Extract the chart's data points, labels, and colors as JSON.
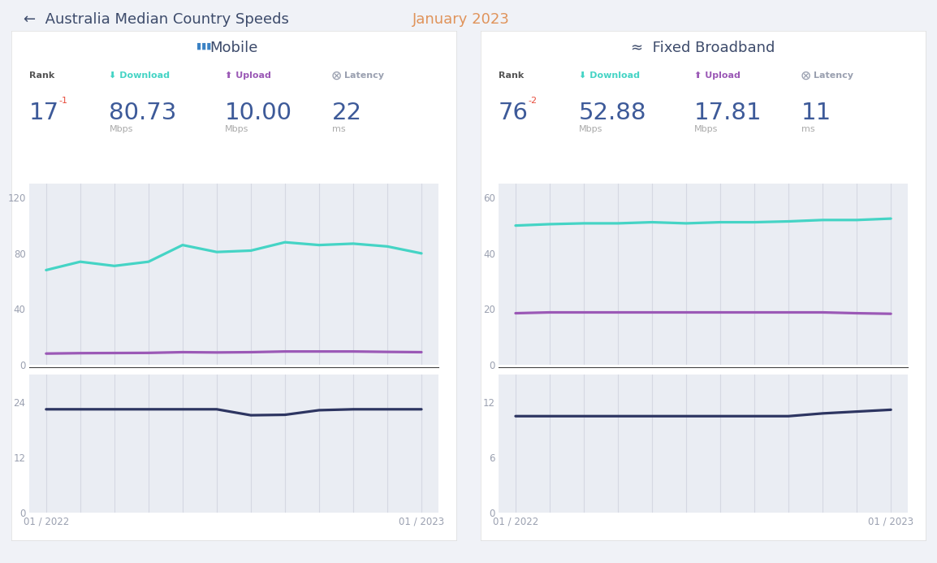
{
  "title_black": "←  Australia Median Country Speeds ",
  "title_orange": "January 2023",
  "page_bg": "#f0f2f7",
  "panel_bg": "#ffffff",
  "chart_bg": "#eaedf3",
  "mobile": {
    "title": "Mobile",
    "rank": "17",
    "rank_change": "-1",
    "download": "80.73",
    "upload": "10.00",
    "latency": "22",
    "download_data": [
      68,
      74,
      71,
      74,
      86,
      81,
      82,
      88,
      86,
      87,
      85,
      80
    ],
    "upload_data": [
      8.0,
      8.3,
      8.4,
      8.5,
      9.0,
      8.8,
      9.0,
      9.5,
      9.5,
      9.5,
      9.2,
      9.0
    ],
    "latency_data": [
      22.5,
      22.5,
      22.5,
      22.5,
      22.5,
      22.5,
      21.2,
      21.3,
      22.3,
      22.5,
      22.5,
      22.5
    ],
    "speed_ylim": [
      0,
      130
    ],
    "speed_yticks": [
      0,
      40,
      80,
      120
    ],
    "latency_ylim": [
      0,
      30
    ],
    "latency_yticks": [
      0,
      12,
      24
    ]
  },
  "broadband": {
    "title": "Fixed Broadband",
    "rank": "76",
    "rank_change": "-2",
    "download": "52.88",
    "upload": "17.81",
    "latency": "11",
    "download_data": [
      50.0,
      50.5,
      50.8,
      50.8,
      51.2,
      50.8,
      51.2,
      51.2,
      51.5,
      52.0,
      52.0,
      52.5
    ],
    "upload_data": [
      18.5,
      18.8,
      18.8,
      18.8,
      18.8,
      18.8,
      18.8,
      18.8,
      18.8,
      18.8,
      18.5,
      18.3
    ],
    "latency_data": [
      10.5,
      10.5,
      10.5,
      10.5,
      10.5,
      10.5,
      10.5,
      10.5,
      10.5,
      10.8,
      11.0,
      11.2
    ],
    "speed_ylim": [
      0,
      65
    ],
    "speed_yticks": [
      0,
      20,
      40,
      60
    ],
    "latency_ylim": [
      0,
      15
    ],
    "latency_yticks": [
      0,
      6,
      12
    ]
  },
  "x_label_start": "01 / 2022",
  "x_label_end": "01 / 2023",
  "download_color": "#45d4c5",
  "upload_color": "#9b59b6",
  "latency_color": "#2d3561",
  "rank_color": "#3d5a99",
  "change_color": "#e74c3c",
  "unit_color": "#aaaaaa",
  "grid_color": "#d5d8e2",
  "tick_color": "#9aa0b0",
  "title_color": "#3d4b6b",
  "label_rank_color": "#555555",
  "download_label_color": "#45d4c5",
  "upload_label_color": "#9b59b6",
  "latency_label_color": "#9aa0b0",
  "divider_color": "#444444"
}
